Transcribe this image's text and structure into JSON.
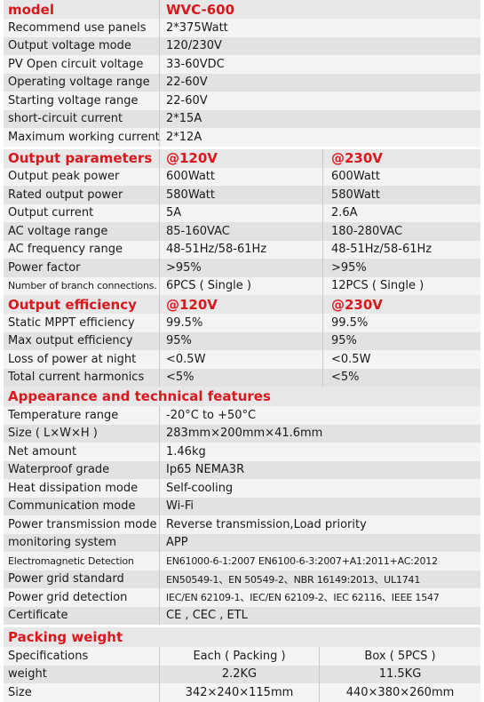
{
  "model": {
    "label": "model",
    "value": "WVC-600",
    "rows": [
      [
        "Recommend use panels",
        "2*375Watt"
      ],
      [
        "Output voltage mode",
        "120/230V"
      ],
      [
        "PV Open circuit voltage",
        "33-60VDC"
      ],
      [
        "Operating voltage range",
        "22-60V"
      ],
      [
        "Starting voltage range",
        "22-60V"
      ],
      [
        "short-circuit current",
        "2*15A"
      ],
      [
        "Maximum working current",
        "2*12A"
      ]
    ]
  },
  "output_parameters": {
    "label": "Output parameters",
    "col1": "@120V",
    "col2": "@230V",
    "rows": [
      [
        "Output peak power",
        "600Watt",
        "600Watt"
      ],
      [
        "Rated output power",
        "580Watt",
        "580Watt"
      ],
      [
        "Output current",
        "5A",
        "2.6A"
      ],
      [
        "AC voltage range",
        "85-160VAC",
        "180-280VAC"
      ],
      [
        "AC frequency range",
        "48-51Hz/58-61Hz",
        "48-51Hz/58-61Hz"
      ],
      [
        "Power factor",
        ">95%",
        ">95%"
      ],
      [
        "Number of branch connections.",
        "6PCS ( Single )",
        "12PCS ( Single )"
      ]
    ]
  },
  "output_efficiency": {
    "label": "Output efficiency",
    "col1": "@120V",
    "col2": "@230V",
    "rows": [
      [
        "Static MPPT efficiency",
        "99.5%",
        "99.5%"
      ],
      [
        "Max output efficiency",
        "95%",
        "95%"
      ],
      [
        "Loss of power at night",
        "<0.5W",
        "<0.5W"
      ],
      [
        "Total current harmonics",
        "<5%",
        "<5%"
      ]
    ]
  },
  "appearance": {
    "label": "Appearance and technical features",
    "rows": [
      [
        "Temperature range",
        "-20°C to +50°C"
      ],
      [
        "Size ( L×W×H )",
        "283mm×200mm×41.6mm"
      ],
      [
        "Net amount",
        "1.46kg"
      ],
      [
        "Waterproof grade",
        "Ip65 NEMA3R"
      ],
      [
        "Heat dissipation mode",
        "Self-cooling"
      ],
      [
        "Communication mode",
        "Wi-Fi"
      ],
      [
        "Power transmission mode",
        "Reverse transmission,Load priority"
      ],
      [
        "monitoring system",
        "APP"
      ],
      [
        "Electromagnetic Detection",
        "EN61000-6-1:2007 EN6100-6-3:2007+A1:2011+AC:2012"
      ],
      [
        "Power grid standard",
        "EN50549-1、EN 50549-2、NBR 16149:2013、UL1741"
      ],
      [
        "Power grid detection",
        "IEC/EN 62109-1、IEC/EN 62109-2、IEC 62116、IEEE 1547"
      ],
      [
        "Certificate",
        "CE , CEC , ETL"
      ]
    ]
  },
  "packing": {
    "label": "Packing weight",
    "rows": [
      [
        "Specifications",
        "Each ( Packing )",
        "Box ( 5PCS )"
      ],
      [
        "weight",
        "2.2KG",
        "11.5KG"
      ],
      [
        "Size",
        "342×240×115mm",
        "440×380×260mm"
      ]
    ]
  },
  "colors": {
    "heading_red": "#d9181e",
    "row_light": "#f4f4f4",
    "row_dark": "#e2e2e2"
  }
}
